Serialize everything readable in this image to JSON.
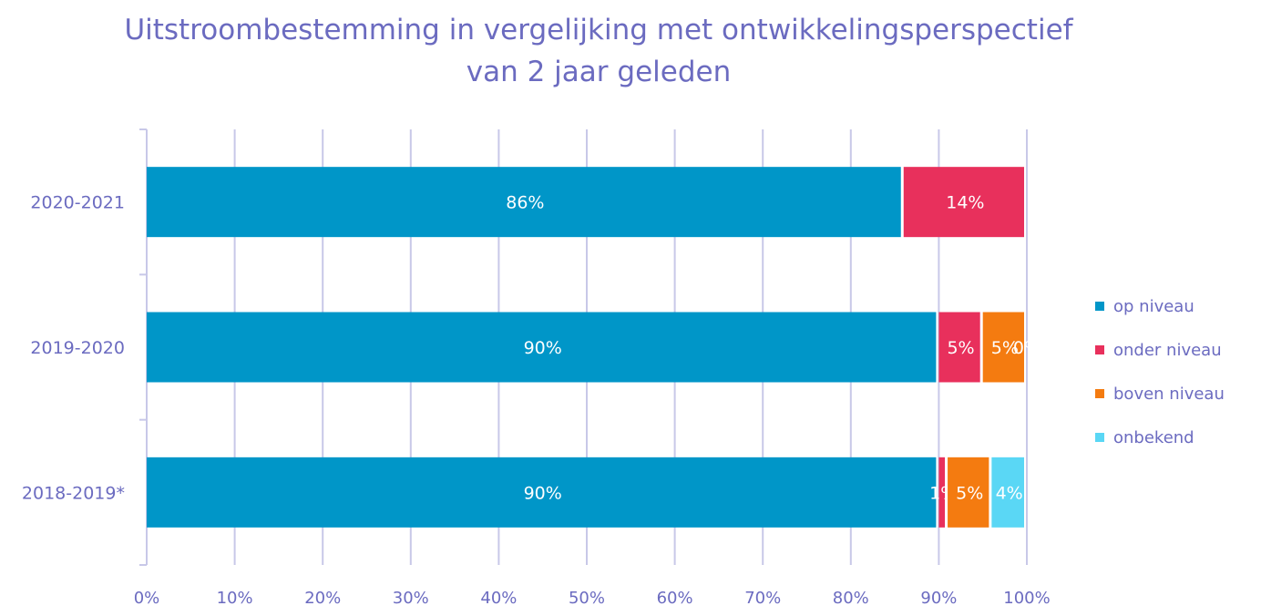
{
  "title_line1": "Uitstroombestemming in vergelijking met ontwikkelingsperspectief",
  "title_line2": "van 2 jaar geleden",
  "chart_data": {
    "type": "bar",
    "orientation": "horizontal",
    "stacked": true,
    "categories": [
      "2020-2021",
      "2019-2020",
      "2018-2019*"
    ],
    "series": [
      {
        "name": "op niveau",
        "color": "#0096c8",
        "values": [
          86,
          90,
          90
        ],
        "labels": [
          "86%",
          "90%",
          "90%"
        ]
      },
      {
        "name": "onder niveau",
        "color": "#e8305c",
        "values": [
          14,
          5,
          1
        ],
        "labels": [
          "14%",
          "5%",
          "1%"
        ]
      },
      {
        "name": "boven niveau",
        "color": "#f47b10",
        "values": [
          0,
          5,
          5
        ],
        "labels": [
          "",
          "5%",
          "5%"
        ]
      },
      {
        "name": "onbekend",
        "color": "#5ad7f5",
        "values": [
          0,
          0,
          4
        ],
        "labels": [
          "",
          "0%",
          "4%"
        ]
      }
    ],
    "xlim": [
      0,
      100
    ],
    "xticks": [
      "0%",
      "10%",
      "20%",
      "30%",
      "40%",
      "50%",
      "60%",
      "70%",
      "80%",
      "90%",
      "100%"
    ],
    "grid": true,
    "legend_position": "right"
  }
}
